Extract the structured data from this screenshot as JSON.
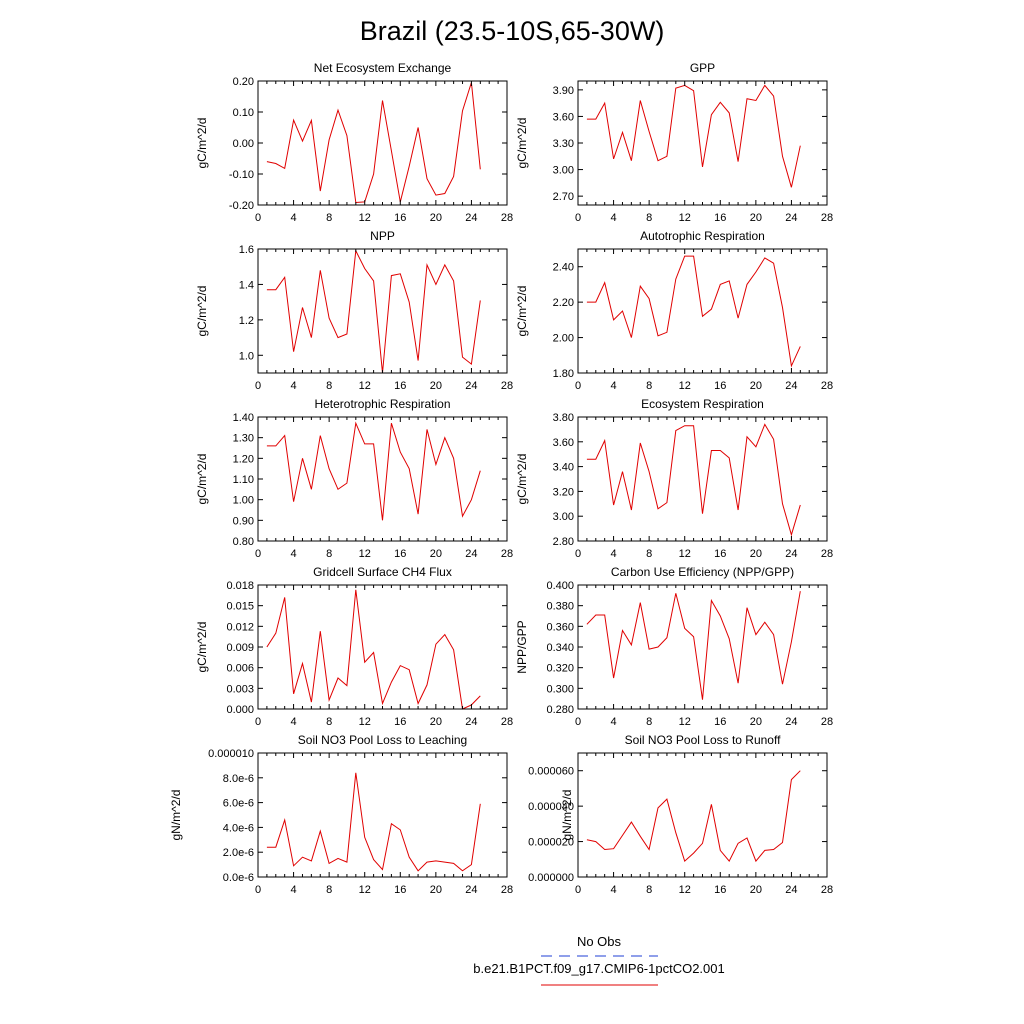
{
  "figure_title": "Brazil (23.5-10S,65-30W)",
  "legend": {
    "obs_label": "No Obs",
    "obs_color": "#1f3fd6",
    "model_label": "b.e21.B1PCT.f09_g17.CMIP6-1pctCO2.001",
    "model_color": "#e00000"
  },
  "chart_data": [
    {
      "type": "line",
      "title": "Net Ecosystem Exchange",
      "xlabel": "",
      "ylabel": "gC/m^2/d",
      "xlim": [
        0,
        28
      ],
      "ylim": [
        -0.2,
        0.2
      ],
      "xticks": [
        0,
        4,
        8,
        12,
        16,
        20,
        24,
        28
      ],
      "yticks": [
        -0.2,
        -0.1,
        0.0,
        0.1,
        0.2
      ],
      "ytick_labels": [
        "-0.20",
        "-0.10",
        "0.00",
        "0.10",
        "0.20"
      ],
      "series": [
        {
          "color": "#e00000",
          "x": [
            1,
            2,
            3,
            4,
            5,
            6,
            7,
            8,
            9,
            10,
            11,
            12,
            13,
            14,
            15,
            16,
            17,
            18,
            19,
            20,
            21,
            22,
            23,
            24,
            25
          ],
          "y": [
            -0.06,
            -0.066,
            -0.082,
            0.074,
            0.006,
            0.073,
            -0.155,
            0.01,
            0.106,
            0.024,
            -0.192,
            -0.19,
            -0.1,
            0.137,
            -0.025,
            -0.19,
            -0.075,
            0.05,
            -0.115,
            -0.168,
            -0.163,
            -0.108,
            0.104,
            0.195,
            -0.085
          ]
        }
      ]
    },
    {
      "type": "line",
      "title": "GPP",
      "xlabel": "",
      "ylabel": "gC/m^2/d",
      "xlim": [
        0,
        28
      ],
      "ylim": [
        2.6,
        4.0
      ],
      "xticks": [
        0,
        4,
        8,
        12,
        16,
        20,
        24,
        28
      ],
      "yticks": [
        2.7,
        3.0,
        3.3,
        3.6,
        3.9
      ],
      "ytick_labels": [
        "2.70",
        "3.00",
        "3.30",
        "3.60",
        "3.90"
      ],
      "series": [
        {
          "color": "#e00000",
          "x": [
            1,
            2,
            3,
            4,
            5,
            6,
            7,
            8,
            9,
            10,
            11,
            12,
            13,
            14,
            15,
            16,
            17,
            18,
            19,
            20,
            21,
            22,
            23,
            24,
            25
          ],
          "y": [
            3.57,
            3.57,
            3.75,
            3.12,
            3.42,
            3.1,
            3.78,
            3.43,
            3.1,
            3.15,
            3.92,
            3.95,
            3.89,
            3.03,
            3.62,
            3.76,
            3.64,
            3.09,
            3.8,
            3.78,
            3.95,
            3.83,
            3.15,
            2.8,
            3.27
          ]
        }
      ]
    },
    {
      "type": "line",
      "title": "NPP",
      "xlabel": "",
      "ylabel": "gC/m^2/d",
      "xlim": [
        0,
        28
      ],
      "ylim": [
        0.9,
        1.6
      ],
      "xticks": [
        0,
        4,
        8,
        12,
        16,
        20,
        24,
        28
      ],
      "yticks": [
        1.0,
        1.2,
        1.4,
        1.6
      ],
      "ytick_labels": [
        "1.0",
        "1.2",
        "1.4",
        "1.6"
      ],
      "series": [
        {
          "color": "#e00000",
          "x": [
            1,
            2,
            3,
            4,
            5,
            6,
            7,
            8,
            9,
            10,
            11,
            12,
            13,
            14,
            15,
            16,
            17,
            18,
            19,
            20,
            21,
            22,
            23,
            24,
            25
          ],
          "y": [
            1.37,
            1.37,
            1.44,
            1.02,
            1.27,
            1.1,
            1.48,
            1.21,
            1.1,
            1.12,
            1.59,
            1.49,
            1.42,
            0.9,
            1.45,
            1.46,
            1.3,
            0.97,
            1.51,
            1.4,
            1.51,
            1.42,
            0.99,
            0.95,
            1.31
          ]
        }
      ]
    },
    {
      "type": "line",
      "title": "Autotrophic Respiration",
      "xlabel": "",
      "ylabel": "gC/m^2/d",
      "xlim": [
        0,
        28
      ],
      "ylim": [
        1.8,
        2.5
      ],
      "xticks": [
        0,
        4,
        8,
        12,
        16,
        20,
        24,
        28
      ],
      "yticks": [
        1.8,
        2.0,
        2.2,
        2.4
      ],
      "ytick_labels": [
        "1.80",
        "2.00",
        "2.20",
        "2.40"
      ],
      "series": [
        {
          "color": "#e00000",
          "x": [
            1,
            2,
            3,
            4,
            5,
            6,
            7,
            8,
            9,
            10,
            11,
            12,
            13,
            14,
            15,
            16,
            17,
            18,
            19,
            20,
            21,
            22,
            23,
            24,
            25
          ],
          "y": [
            2.2,
            2.2,
            2.31,
            2.1,
            2.15,
            2.0,
            2.29,
            2.22,
            2.01,
            2.03,
            2.33,
            2.46,
            2.46,
            2.12,
            2.16,
            2.3,
            2.32,
            2.11,
            2.3,
            2.37,
            2.45,
            2.42,
            2.17,
            1.84,
            1.95
          ]
        }
      ]
    },
    {
      "type": "line",
      "title": "Heterotrophic Respiration",
      "xlabel": "",
      "ylabel": "gC/m^2/d",
      "xlim": [
        0,
        28
      ],
      "ylim": [
        0.8,
        1.4
      ],
      "xticks": [
        0,
        4,
        8,
        12,
        16,
        20,
        24,
        28
      ],
      "yticks": [
        0.8,
        0.9,
        1.0,
        1.1,
        1.2,
        1.3,
        1.4
      ],
      "ytick_labels": [
        "0.80",
        "0.90",
        "1.00",
        "1.10",
        "1.20",
        "1.30",
        "1.40"
      ],
      "series": [
        {
          "color": "#e00000",
          "x": [
            1,
            2,
            3,
            4,
            5,
            6,
            7,
            8,
            9,
            10,
            11,
            12,
            13,
            14,
            15,
            16,
            17,
            18,
            19,
            20,
            21,
            22,
            23,
            24,
            25
          ],
          "y": [
            1.26,
            1.26,
            1.31,
            0.99,
            1.2,
            1.05,
            1.31,
            1.15,
            1.05,
            1.08,
            1.37,
            1.27,
            1.27,
            0.9,
            1.37,
            1.23,
            1.15,
            0.93,
            1.34,
            1.17,
            1.3,
            1.2,
            0.92,
            1.0,
            1.14
          ]
        }
      ]
    },
    {
      "type": "line",
      "title": "Ecosystem Respiration",
      "xlabel": "",
      "ylabel": "gC/m^2/d",
      "xlim": [
        0,
        28
      ],
      "ylim": [
        2.8,
        3.8
      ],
      "xticks": [
        0,
        4,
        8,
        12,
        16,
        20,
        24,
        28
      ],
      "yticks": [
        2.8,
        3.0,
        3.2,
        3.4,
        3.6,
        3.8
      ],
      "ytick_labels": [
        "2.80",
        "3.00",
        "3.20",
        "3.40",
        "3.60",
        "3.80"
      ],
      "series": [
        {
          "color": "#e00000",
          "x": [
            1,
            2,
            3,
            4,
            5,
            6,
            7,
            8,
            9,
            10,
            11,
            12,
            13,
            14,
            15,
            16,
            17,
            18,
            19,
            20,
            21,
            22,
            23,
            24,
            25
          ],
          "y": [
            3.46,
            3.46,
            3.61,
            3.09,
            3.36,
            3.05,
            3.59,
            3.36,
            3.06,
            3.11,
            3.69,
            3.73,
            3.73,
            3.02,
            3.53,
            3.53,
            3.47,
            3.05,
            3.64,
            3.56,
            3.74,
            3.62,
            3.1,
            2.85,
            3.09
          ]
        }
      ]
    },
    {
      "type": "line",
      "title": "Gridcell Surface CH4 Flux",
      "xlabel": "",
      "ylabel": "gC/m^2/d",
      "xlim": [
        0,
        28
      ],
      "ylim": [
        0.0,
        0.018
      ],
      "xticks": [
        0,
        4,
        8,
        12,
        16,
        20,
        24,
        28
      ],
      "yticks": [
        0.0,
        0.003,
        0.006,
        0.009,
        0.012,
        0.015,
        0.018
      ],
      "ytick_labels": [
        "0.000",
        "0.003",
        "0.006",
        "0.009",
        "0.012",
        "0.015",
        "0.018"
      ],
      "series": [
        {
          "color": "#e00000",
          "x": [
            1,
            2,
            3,
            4,
            5,
            6,
            7,
            8,
            9,
            10,
            11,
            12,
            13,
            14,
            15,
            16,
            17,
            18,
            19,
            20,
            21,
            22,
            23,
            24,
            25
          ],
          "y": [
            0.009,
            0.011,
            0.0162,
            0.0022,
            0.0066,
            0.001,
            0.0113,
            0.0013,
            0.0045,
            0.0034,
            0.0173,
            0.0068,
            0.0082,
            0.0008,
            0.0039,
            0.0063,
            0.0057,
            0.0008,
            0.0035,
            0.0094,
            0.0108,
            0.0086,
            0.0,
            0.0006,
            0.0019
          ]
        }
      ]
    },
    {
      "type": "line",
      "title": "Carbon Use Efficiency (NPP/GPP)",
      "xlabel": "",
      "ylabel": "NPP/GPP",
      "xlim": [
        0,
        28
      ],
      "ylim": [
        0.28,
        0.4
      ],
      "xticks": [
        0,
        4,
        8,
        12,
        16,
        20,
        24,
        28
      ],
      "yticks": [
        0.28,
        0.3,
        0.32,
        0.34,
        0.36,
        0.38,
        0.4
      ],
      "ytick_labels": [
        "0.280",
        "0.300",
        "0.320",
        "0.340",
        "0.360",
        "0.380",
        "0.400"
      ],
      "series": [
        {
          "color": "#e00000",
          "x": [
            1,
            2,
            3,
            4,
            5,
            6,
            7,
            8,
            9,
            10,
            11,
            12,
            13,
            14,
            15,
            16,
            17,
            18,
            19,
            20,
            21,
            22,
            23,
            24,
            25
          ],
          "y": [
            0.362,
            0.371,
            0.371,
            0.31,
            0.356,
            0.342,
            0.383,
            0.338,
            0.34,
            0.349,
            0.392,
            0.358,
            0.35,
            0.289,
            0.385,
            0.37,
            0.348,
            0.305,
            0.378,
            0.352,
            0.364,
            0.352,
            0.304,
            0.345,
            0.394
          ]
        }
      ]
    },
    {
      "type": "line",
      "title": "Soil NO3 Pool Loss to Leaching",
      "xlabel": "",
      "ylabel": "gN/m^2/d",
      "xlim": [
        0,
        28
      ],
      "ylim": [
        0.0,
        1e-05
      ],
      "xticks": [
        0,
        4,
        8,
        12,
        16,
        20,
        24,
        28
      ],
      "yticks": [
        0.0,
        2e-06,
        4e-06,
        6e-06,
        8e-06,
        1e-05
      ],
      "ytick_labels": [
        "0.0e-6",
        "2.0e-6",
        "4.0e-6",
        "6.0e-6",
        "8.0e-6",
        "0.000010"
      ],
      "series": [
        {
          "color": "#e00000",
          "x": [
            1,
            2,
            3,
            4,
            5,
            6,
            7,
            8,
            9,
            10,
            11,
            12,
            13,
            14,
            15,
            16,
            17,
            18,
            19,
            20,
            21,
            22,
            23,
            24,
            25
          ],
          "y": [
            2.4e-06,
            2.4e-06,
            4.6e-06,
            9e-07,
            1.6e-06,
            1.3e-06,
            3.7e-06,
            1.1e-06,
            1.5e-06,
            1.2e-06,
            8.4e-06,
            3.2e-06,
            1.4e-06,
            6e-07,
            4.3e-06,
            3.8e-06,
            1.6e-06,
            5e-07,
            1.2e-06,
            1.3e-06,
            1.2e-06,
            1.1e-06,
            5e-07,
            1e-06,
            5.9e-06
          ]
        }
      ]
    },
    {
      "type": "line",
      "title": "Soil NO3 Pool Loss to Runoff",
      "xlabel": "",
      "ylabel": "gN/m^2/d",
      "xlim": [
        0,
        28
      ],
      "ylim": [
        0.0,
        7e-05
      ],
      "xticks": [
        0,
        4,
        8,
        12,
        16,
        20,
        24,
        28
      ],
      "yticks": [
        0.0,
        2e-05,
        4e-05,
        6e-05
      ],
      "ytick_labels": [
        "0.000000",
        "0.000020",
        "0.000040",
        "0.000060"
      ],
      "series": [
        {
          "color": "#e00000",
          "x": [
            1,
            2,
            3,
            4,
            5,
            6,
            7,
            8,
            9,
            10,
            11,
            12,
            13,
            14,
            15,
            16,
            17,
            18,
            19,
            20,
            21,
            22,
            23,
            24,
            25
          ],
          "y": [
            2.1e-05,
            2e-05,
            1.55e-05,
            1.6e-05,
            2.35e-05,
            3.1e-05,
            2.3e-05,
            1.55e-05,
            3.9e-05,
            4.4e-05,
            2.5e-05,
            9e-06,
            1.35e-05,
            1.9e-05,
            4.1e-05,
            1.5e-05,
            9e-06,
            1.9e-05,
            2.2e-05,
            9e-06,
            1.5e-05,
            1.55e-05,
            1.95e-05,
            5.5e-05,
            6e-05
          ]
        }
      ]
    }
  ]
}
